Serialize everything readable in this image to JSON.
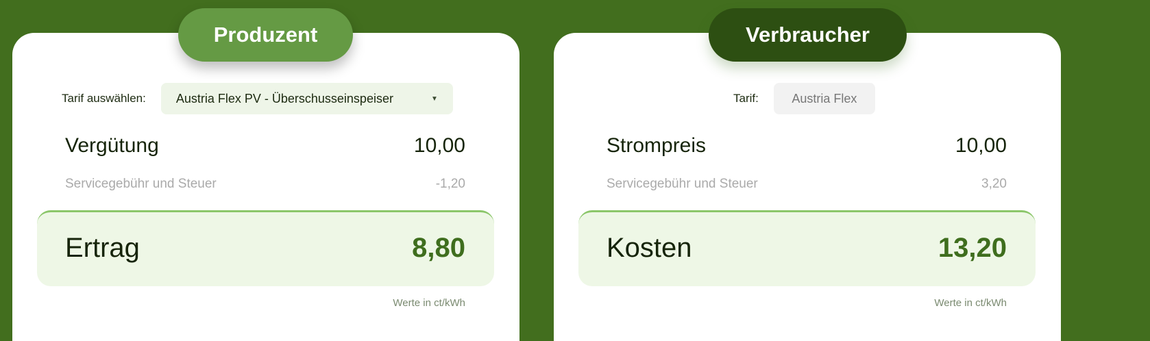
{
  "producer": {
    "title": "Produzent",
    "tarif_label": "Tarif auswählen:",
    "tarif_value": "Austria Flex PV - Überschusseinspeiser",
    "main_label": "Vergütung",
    "main_value": "10,00",
    "fee_label": "Servicegebühr und Steuer",
    "fee_value": "-1,20",
    "total_label": "Ertrag",
    "total_value": "8,80",
    "unit": "Werte in ct/kWh"
  },
  "consumer": {
    "title": "Verbraucher",
    "tarif_label": "Tarif:",
    "tarif_value": "Austria Flex",
    "main_label": "Strompreis",
    "main_value": "10,00",
    "fee_label": "Servicegebühr und Steuer",
    "fee_value": "3,20",
    "total_label": "Kosten",
    "total_value": "13,20",
    "unit": "Werte in ct/kWh"
  },
  "colors": {
    "background": "#426e1e",
    "producer_accent": "#659a44",
    "consumer_accent": "#2d4f12",
    "total_value": "#3f6e1e"
  }
}
